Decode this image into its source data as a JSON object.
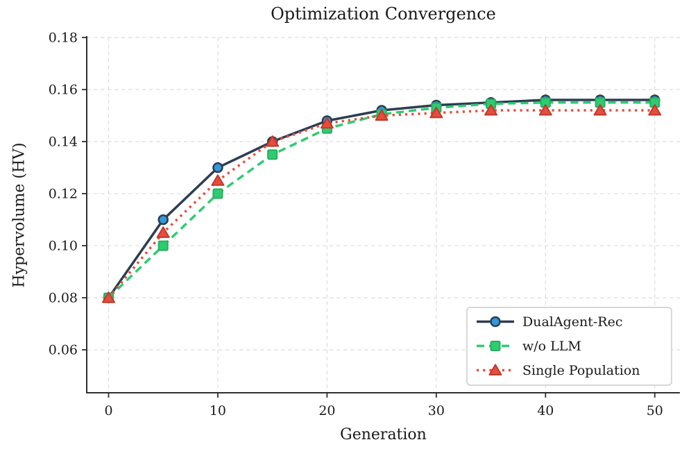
{
  "chart_data": {
    "type": "line",
    "title": "Optimization Convergence",
    "xlabel": "Generation",
    "ylabel": "Hypervolume (HV)",
    "x": [
      0,
      5,
      10,
      15,
      20,
      25,
      30,
      35,
      40,
      45,
      50
    ],
    "xlim": [
      -2,
      52.3
    ],
    "ylim": [
      0.0435,
      0.18
    ],
    "xticks": [
      0,
      10,
      20,
      30,
      40,
      50
    ],
    "yticks": [
      0.06,
      0.08,
      0.1,
      0.12,
      0.14,
      0.16,
      0.18
    ],
    "grid": true,
    "grid_style": "dashed",
    "legend_position": "lower right",
    "colors": {
      "grid": "#dcdcdc",
      "spine": "#2f2f2f",
      "tick_label": "#1a1a1a",
      "legend_border": "#cccccc",
      "legend_background": "#ffffff"
    },
    "series": [
      {
        "name": "DualAgent-Rec",
        "values": [
          0.08,
          0.11,
          0.13,
          0.14,
          0.148,
          0.152,
          0.154,
          0.155,
          0.156,
          0.156,
          0.156
        ],
        "line_color": "#2c3e50",
        "line_style": "solid",
        "marker": "circle",
        "marker_fill": "#3498db",
        "marker_edge": "#2c3e50"
      },
      {
        "name": "w/o LLM",
        "values": [
          0.08,
          0.1,
          0.12,
          0.135,
          0.145,
          0.1505,
          0.153,
          0.1545,
          0.155,
          0.155,
          0.155
        ],
        "line_color": "#2ecc71",
        "line_style": "dashed",
        "marker": "square",
        "marker_fill": "#2ecc71",
        "marker_edge": "#27ae60"
      },
      {
        "name": "Single Population",
        "values": [
          0.08,
          0.105,
          0.125,
          0.14,
          0.147,
          0.15,
          0.151,
          0.152,
          0.152,
          0.152,
          0.152
        ],
        "line_color": "#e74c3c",
        "line_style": "dotted",
        "marker": "triangle",
        "marker_fill": "#e74c3c",
        "marker_edge": "#c0392b"
      }
    ]
  }
}
